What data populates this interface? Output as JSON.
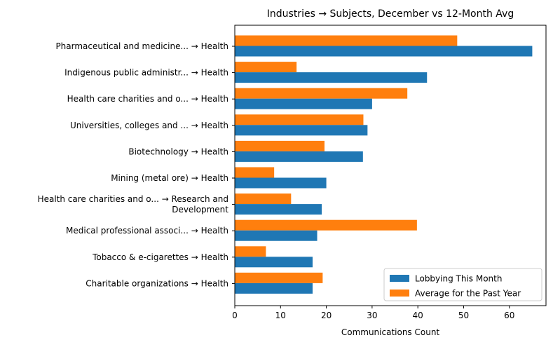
{
  "chart_data": {
    "type": "bar",
    "orientation": "horizontal",
    "title": "Industries → Subjects, December vs 12-Month Avg",
    "xlabel": "Communications Count",
    "ylabel": "",
    "xlim": [
      0,
      68
    ],
    "xticks": [
      0,
      10,
      20,
      30,
      40,
      50,
      60
    ],
    "grid": false,
    "legend_position": "lower-right",
    "categories": [
      [
        "Pharmaceutical and medicine... → Health"
      ],
      [
        "Indigenous public administr... → Health"
      ],
      [
        "Health care charities and o... → Health"
      ],
      [
        "Universities, colleges and ... → Health"
      ],
      [
        "Biotechnology → Health"
      ],
      [
        "Mining (metal ore) → Health"
      ],
      [
        "Health care charities and o... → Research and",
        "Development"
      ],
      [
        "Medical professional associ... → Health"
      ],
      [
        "Tobacco & e-cigarettes → Health"
      ],
      [
        "Charitable organizations → Health"
      ]
    ],
    "series": [
      {
        "name": "Lobbying This Month",
        "color": "#1f77b4",
        "values": [
          65,
          42,
          30,
          29,
          28,
          20,
          19,
          18,
          17,
          17
        ]
      },
      {
        "name": "Average for the Past Year",
        "color": "#ff7f0e",
        "values": [
          48.6,
          13.5,
          37.7,
          28.1,
          19.6,
          8.6,
          12.3,
          39.8,
          6.8,
          19.2
        ]
      }
    ]
  }
}
